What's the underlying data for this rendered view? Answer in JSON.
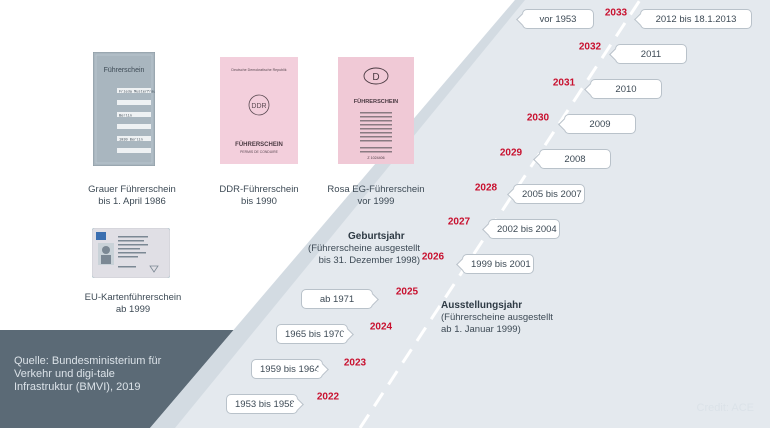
{
  "licenses": [
    {
      "line1": "Grauer Führerschein",
      "line2": "bis 1. April 1986",
      "card_title": "Führerschein",
      "card_text_1": "Frieda Musterfrau",
      "card_text_2": "Berlin",
      "card_text_3": "1030 Berlin"
    },
    {
      "line1": "DDR-Führerschein",
      "line2": "bis 1990",
      "card_header": "Deutsche Demokratische Republik",
      "card_emblem": "DDR",
      "card_title": "FÜHRERSCHEIN",
      "card_sub": "PERMIS DE CONDUIRE"
    },
    {
      "line1": "Rosa EG-Führerschein",
      "line2": "vor 1999",
      "card_emblem": "D",
      "card_title": "FÜHRERSCHEIN",
      "card_number": "Z 1024406"
    },
    {
      "line1": "EU-Kartenführerschein",
      "line2": "ab 1999"
    }
  ],
  "geburtsjahr": {
    "title": "Geburtsjahr",
    "line1": "(Führerscheine ausgestellt",
    "line2": "bis 31. Dezember 1998)"
  },
  "ausstellungsjahr": {
    "title": "Ausstellungsjahr",
    "line1": "(Führerscheine ausgestellt",
    "line2": "ab 1. Januar 1999)"
  },
  "timeline": [
    {
      "year": "2033",
      "left": "vor 1953",
      "right": "2012 bis 18.1.2013"
    },
    {
      "year": "2032",
      "left": "",
      "right": "2011"
    },
    {
      "year": "2031",
      "left": "",
      "right": "2010"
    },
    {
      "year": "2030",
      "left": "",
      "right": "2009"
    },
    {
      "year": "2029",
      "left": "",
      "right": "2008"
    },
    {
      "year": "2028",
      "left": "",
      "right": "2005 bis 2007"
    },
    {
      "year": "2027",
      "left": "",
      "right": "2002 bis 2004"
    },
    {
      "year": "2026",
      "left": "",
      "right": "1999 bis 2001"
    },
    {
      "year": "2025",
      "left": "ab 1971",
      "right": ""
    },
    {
      "year": "2024",
      "left": "1965 bis 1970",
      "right": ""
    },
    {
      "year": "2023",
      "left": "1959 bis 1964",
      "right": ""
    },
    {
      "year": "2022",
      "left": "1953 bis 1958",
      "right": ""
    }
  ],
  "source": "Quelle: Bundesministerium für Verkehr und digi-tale Infrastruktur (BMVI), 2019",
  "credit": "Credit: ACE",
  "colors": {
    "road": "#e4e9ee",
    "ground": "#5b6a76",
    "year_red": "#c8102e",
    "grey_license": "#a9b6bf",
    "pink_license": "#f0c9d6"
  }
}
